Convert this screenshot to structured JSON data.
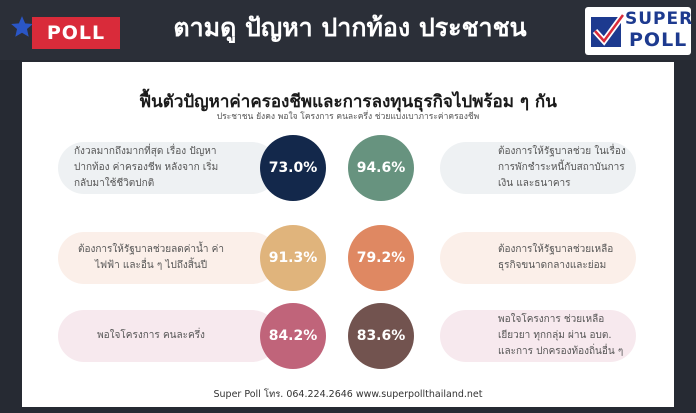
{
  "header": {
    "badge": "POLL",
    "title": "ตามดู ปัญหา ปากท้อง ประชาชน",
    "logo_top": "SUPER",
    "logo_bottom": "POLL"
  },
  "card": {
    "title": "ฟื้นตัวปัญหาค่าครองชีพและการลงทุนธุรกิจไปพร้อม ๆ กัน",
    "subtitle": "ประชาชน ยังคง พอใจ โครงการ คนละครึ่ง ช่วยแบ่งเบาภาระค่าครองชีพ",
    "rows": [
      {
        "left_text": "กังวลมากถึงมากที่สุด เรื่อง ปัญหา ปากท้อง ค่าครองชีพ หลังจาก เริ่มกลับมาใช้ชีวิตปกติ",
        "left_value": "73.0%",
        "left_color": "#13284b",
        "right_value": "94.6%",
        "right_color": "#67937f",
        "right_text": "ต้องการให้รัฐบาลช่วย ในเรื่อง การพักชำระหนี้กับสถาบันการเงิน และธนาคาร",
        "pill_color": "#eef1f3"
      },
      {
        "left_text": "ต้องการให้รัฐบาลช่วยลดค่าน้ำ ค่าไฟฟ้า และอื่น ๆ ไปถึงสิ้นปี",
        "left_value": "91.3%",
        "left_color": "#e0b47c",
        "right_value": "79.2%",
        "right_color": "#df8862",
        "right_text": "ต้องการให้รัฐบาลช่วยเหลือ ธุรกิจขนาดกลางและย่อม",
        "pill_color": "#fbefe9"
      },
      {
        "left_text": "พอใจโครงการ คนละครึ่ง",
        "left_value": "84.2%",
        "left_color": "#c0647a",
        "right_value": "83.6%",
        "right_color": "#72534f",
        "right_text": "พอใจโครงการ ช่วยเหลือเยียวยา ทุกกลุ่ม ผ่าน อบต. และการ ปกครองท้องถิ่นอื่น ๆ",
        "pill_color": "#f7e9ee"
      }
    ],
    "footer": "Super Poll โทร. 064.224.2646  www.superpollthailand.net"
  }
}
